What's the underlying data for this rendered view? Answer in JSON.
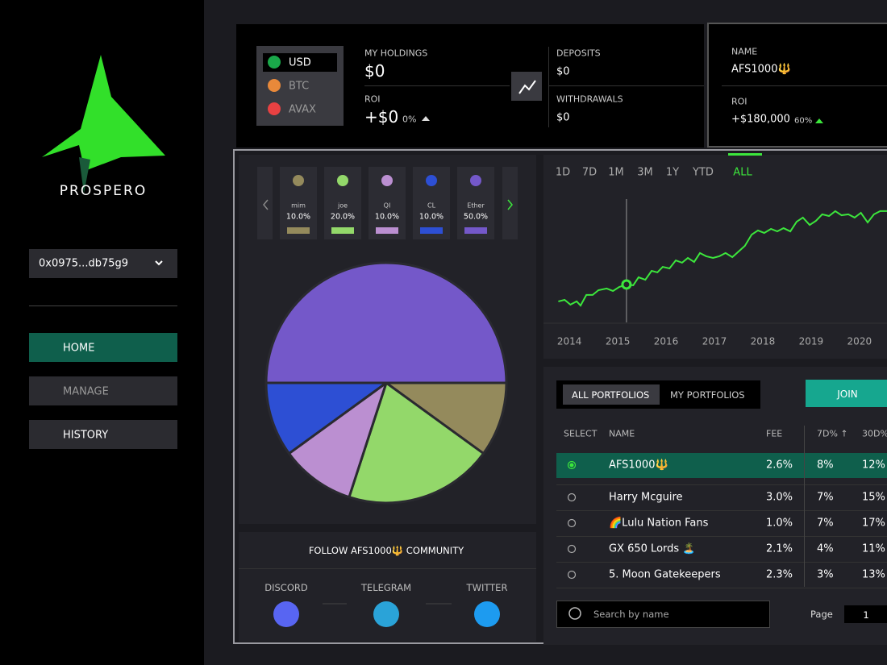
{
  "sidebar": {
    "brand": "PROSPERO",
    "wallet": "0x0975...db75g9",
    "nav": [
      "HOME",
      "MANAGE",
      "HISTORY"
    ]
  },
  "currencies": [
    "USD",
    "BTC",
    "AVAX"
  ],
  "holdings": {
    "my_holdings_label": "MY HOLDINGS",
    "my_holdings": "$0",
    "roi_label": "ROI",
    "roi": "+$0",
    "roi_pct": "0%",
    "deposits_label": "DEPOSITS",
    "deposits": "$0",
    "withdrawals_label": "WITHDRAWALS",
    "withdrawals": "$0"
  },
  "portfolio_summary": {
    "name_label": "NAME",
    "name": "AFS1000🔱",
    "roi_label": "ROI",
    "roi": "+$180,000",
    "roi_pct": "60%"
  },
  "chart_data": [
    {
      "type": "pie",
      "categories": [
        "mim",
        "joe",
        "QI",
        "CL",
        "Ether"
      ],
      "values": [
        10,
        20,
        10,
        10,
        50
      ],
      "value_labels": [
        "10.0%",
        "20.0%",
        "10.0%",
        "10.0%",
        "50.0%"
      ],
      "colors": [
        "#948a5c",
        "#93d86a",
        "#bb8fd1",
        "#2d4fd4",
        "#7458c9"
      ]
    },
    {
      "type": "line",
      "color": "#3ce63c",
      "ranges": [
        "1D",
        "7D",
        "1M",
        "3M",
        "1Y",
        "YTD",
        "ALL"
      ],
      "active_range": 6,
      "x": [
        2013.77,
        2013.9,
        2014.02,
        2014.15,
        2014.23,
        2014.35,
        2014.48,
        2014.6,
        2014.77,
        2014.9,
        2015.03,
        2015.18,
        2015.32,
        2015.43,
        2015.57,
        2015.7,
        2015.82,
        2015.93,
        2016.07,
        2016.2,
        2016.33,
        2016.45,
        2016.58,
        2016.7,
        2016.83,
        2016.97,
        2017.1,
        2017.23,
        2017.37,
        2017.5,
        2017.63,
        2017.77,
        2017.9,
        2018.03,
        2018.17,
        2018.3,
        2018.43,
        2018.57,
        2018.7,
        2018.83,
        2018.97,
        2019.1,
        2019.23,
        2019.37,
        2019.5,
        2019.63,
        2019.77,
        2019.9,
        2020.03,
        2020.17,
        2020.3,
        2020.43,
        2020.57
      ],
      "values": [
        16.3,
        17.5,
        13.8,
        16.3,
        13.1,
        21.3,
        21.3,
        25,
        26.3,
        24.4,
        27.5,
        29.4,
        28.8,
        35,
        33.1,
        40,
        38.8,
        43.1,
        41.9,
        48.1,
        46.3,
        50,
        46.9,
        53.8,
        51.3,
        50,
        51.3,
        53.8,
        50.6,
        55,
        59.4,
        68.1,
        71.3,
        69.4,
        72.5,
        70.6,
        73.1,
        70.6,
        78.1,
        81.3,
        75.6,
        78.8,
        83.8,
        82.5,
        86.3,
        83.1,
        83.8,
        81.3,
        85,
        77.5,
        83.8,
        86.3,
        86.3
      ],
      "highlight_index": 11,
      "xlim": [
        2013.73,
        2020.57
      ],
      "ylim": [
        0,
        100
      ],
      "xticks": [
        2014,
        2015,
        2016,
        2017,
        2018,
        2019,
        2020
      ]
    }
  ],
  "community": {
    "title": "FOLLOW AFS1000🔱 COMMUNITY",
    "links": [
      "DISCORD",
      "TELEGRAM",
      "TWITTER"
    ]
  },
  "table": {
    "tabs": [
      "ALL PORTFOLIOS",
      "MY PORTFOLIOS"
    ],
    "join": "JOIN",
    "columns": [
      "SELECT",
      "NAME",
      "FEE",
      "7D% ↑",
      "30D%"
    ],
    "rows": [
      [
        "AFS1000🔱",
        "2.6%",
        "8%",
        "12%"
      ],
      [
        "Harry Mcguire",
        "3.0%",
        "7%",
        "15%"
      ],
      [
        "🌈Lulu Nation Fans",
        "1.0%",
        "7%",
        "17%"
      ],
      [
        "GX 650 Lords 🏝️",
        "2.1%",
        "4%",
        "11%"
      ],
      [
        "5. Moon  Gatekeepers",
        "2.3%",
        "3%",
        "13%"
      ]
    ],
    "search_placeholder": "Search by name",
    "page_label": "Page",
    "page": "1"
  }
}
